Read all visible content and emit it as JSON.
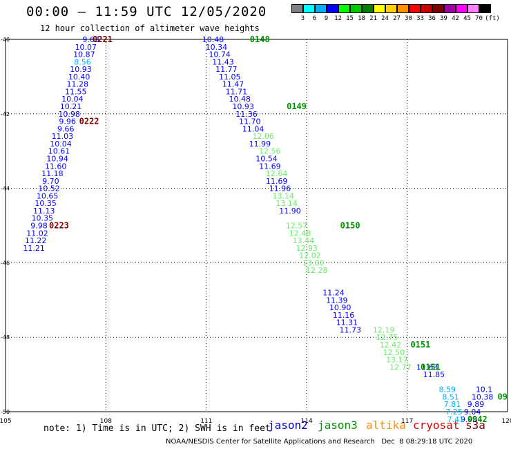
{
  "header": {
    "title": "00:00 — 11:59 UTC 12/05/2020",
    "subtitle": "12 hour collection of altimeter wave heights"
  },
  "colorbar": {
    "unit": "(ft)",
    "bins": [
      {
        "label": "3",
        "color": "#7f7f7f"
      },
      {
        "label": "6",
        "color": "#00ffff"
      },
      {
        "label": "9",
        "color": "#00b0ff"
      },
      {
        "label": "12",
        "color": "#0000ff"
      },
      {
        "label": "15",
        "color": "#00ff00"
      },
      {
        "label": "18",
        "color": "#00c800"
      },
      {
        "label": "21",
        "color": "#008000"
      },
      {
        "label": "24",
        "color": "#ffff00"
      },
      {
        "label": "27",
        "color": "#ffd000"
      },
      {
        "label": "30",
        "color": "#ff9000"
      },
      {
        "label": "33",
        "color": "#ff0000"
      },
      {
        "label": "36",
        "color": "#c80000"
      },
      {
        "label": "39",
        "color": "#800000"
      },
      {
        "label": "42",
        "color": "#a000a0"
      },
      {
        "label": "45",
        "color": "#ff00ff"
      },
      {
        "label": "70",
        "color": "#ff80ff"
      },
      {
        "label": "",
        "color": "#000000"
      }
    ]
  },
  "chart_data": {
    "type": "scatter",
    "xlim": [
      105,
      120
    ],
    "ylim": [
      -50,
      -40
    ],
    "xticks": [
      "105",
      "108",
      "111",
      "114",
      "117",
      "120"
    ],
    "yticks": [
      "-40",
      "-42",
      "-44",
      "-46",
      "-48",
      "-50"
    ],
    "grid": true,
    "series_colors": {
      "jason2": "#0000c8",
      "jason3": "#009000",
      "altika": "#ff8c00",
      "cryosat": "#e00000",
      "s3a": "#800000"
    },
    "legend": [
      "jason2",
      "jason3",
      "altika",
      "cryosat",
      "s3a"
    ],
    "series": [
      {
        "name": "s3a",
        "points": [
          {
            "x": 107.55,
            "y": -40.0,
            "v": "9.63"
          },
          {
            "x": 107.4,
            "y": -40.2,
            "v": "10.07"
          },
          {
            "x": 107.35,
            "y": -40.4,
            "v": "10.87"
          },
          {
            "x": 107.3,
            "y": -40.6,
            "v": "8.56"
          },
          {
            "x": 107.25,
            "y": -40.8,
            "v": "10.93"
          },
          {
            "x": 107.2,
            "y": -41.0,
            "v": "10.40"
          },
          {
            "x": 107.15,
            "y": -41.2,
            "v": "11.28"
          },
          {
            "x": 107.1,
            "y": -41.4,
            "v": "11.55"
          },
          {
            "x": 107.0,
            "y": -41.6,
            "v": "10.04"
          },
          {
            "x": 106.95,
            "y": -41.8,
            "v": "10.21"
          },
          {
            "x": 106.9,
            "y": -42.0,
            "v": "10.98"
          },
          {
            "x": 106.85,
            "y": -42.2,
            "v": "9.96"
          },
          {
            "x": 106.8,
            "y": -42.4,
            "v": "9.66"
          },
          {
            "x": 106.7,
            "y": -42.6,
            "v": "11.03"
          },
          {
            "x": 106.65,
            "y": -42.8,
            "v": "10.04"
          },
          {
            "x": 106.6,
            "y": -43.0,
            "v": "10.61"
          },
          {
            "x": 106.55,
            "y": -43.2,
            "v": "10.94"
          },
          {
            "x": 106.5,
            "y": -43.4,
            "v": "11.60"
          },
          {
            "x": 106.4,
            "y": -43.6,
            "v": "11.18"
          },
          {
            "x": 106.35,
            "y": -43.8,
            "v": "9.70"
          },
          {
            "x": 106.3,
            "y": -44.0,
            "v": "10.52"
          },
          {
            "x": 106.25,
            "y": -44.2,
            "v": "10.65"
          },
          {
            "x": 106.2,
            "y": -44.4,
            "v": "10.35"
          },
          {
            "x": 106.15,
            "y": -44.6,
            "v": "11.13"
          },
          {
            "x": 106.1,
            "y": -44.8,
            "v": "10.35"
          },
          {
            "x": 106.0,
            "y": -45.0,
            "v": "9.98"
          },
          {
            "x": 105.95,
            "y": -45.2,
            "v": "11.02"
          },
          {
            "x": 105.9,
            "y": -45.4,
            "v": "11.22"
          },
          {
            "x": 105.85,
            "y": -45.6,
            "v": "11.21"
          }
        ]
      },
      {
        "name": "jason2",
        "points": [
          {
            "x": 111.2,
            "y": -40.0,
            "v": "10.48"
          },
          {
            "x": 111.3,
            "y": -40.2,
            "v": "10.34"
          },
          {
            "x": 111.4,
            "y": -40.4,
            "v": "10.74"
          },
          {
            "x": 111.5,
            "y": -40.6,
            "v": "11.43"
          },
          {
            "x": 111.6,
            "y": -40.8,
            "v": "11.77"
          },
          {
            "x": 111.7,
            "y": -41.0,
            "v": "11.05"
          },
          {
            "x": 111.8,
            "y": -41.2,
            "v": "11.47"
          },
          {
            "x": 111.9,
            "y": -41.4,
            "v": "11.71"
          },
          {
            "x": 112.0,
            "y": -41.6,
            "v": "10.48"
          },
          {
            "x": 112.1,
            "y": -41.8,
            "v": "10.93"
          },
          {
            "x": 112.2,
            "y": -42.0,
            "v": "11.36"
          },
          {
            "x": 112.3,
            "y": -42.2,
            "v": "11.70"
          },
          {
            "x": 112.4,
            "y": -42.4,
            "v": "11.04"
          },
          {
            "x": 112.6,
            "y": -42.8,
            "v": "11.99"
          },
          {
            "x": 112.8,
            "y": -43.2,
            "v": "10.54"
          },
          {
            "x": 112.9,
            "y": -43.4,
            "v": "11.69"
          },
          {
            "x": 113.1,
            "y": -43.8,
            "v": "11.69"
          },
          {
            "x": 113.2,
            "y": -44.0,
            "v": "11.96"
          },
          {
            "x": 113.5,
            "y": -44.6,
            "v": "11.90"
          },
          {
            "x": 114.8,
            "y": -46.8,
            "v": "11.24"
          },
          {
            "x": 114.9,
            "y": -47.0,
            "v": "11.39"
          },
          {
            "x": 115.0,
            "y": -47.2,
            "v": "10.90"
          },
          {
            "x": 115.1,
            "y": -47.4,
            "v": "11.16"
          },
          {
            "x": 115.2,
            "y": -47.6,
            "v": "11.31"
          },
          {
            "x": 115.3,
            "y": -47.8,
            "v": "11.73"
          },
          {
            "x": 117.6,
            "y": -48.8,
            "v": "11.63"
          },
          {
            "x": 117.8,
            "y": -49.0,
            "v": "11.85"
          },
          {
            "x": 119.3,
            "y": -49.4,
            "v": "10.1"
          },
          {
            "x": 119.25,
            "y": -49.6,
            "v": "10.38"
          },
          {
            "x": 119.05,
            "y": -49.8,
            "v": "9.89"
          },
          {
            "x": 118.95,
            "y": -50.0,
            "v": "9.04"
          },
          {
            "x": 118.85,
            "y": -50.2,
            "v": "9.98"
          }
        ]
      },
      {
        "name": "jason3",
        "points": [
          {
            "x": 112.7,
            "y": -42.6,
            "v": "12.06"
          },
          {
            "x": 112.9,
            "y": -43.0,
            "v": "12.56"
          },
          {
            "x": 113.1,
            "y": -43.6,
            "v": "12.64"
          },
          {
            "x": 113.3,
            "y": -44.2,
            "v": "13.14"
          },
          {
            "x": 113.4,
            "y": -44.4,
            "v": "13.14"
          },
          {
            "x": 113.7,
            "y": -45.0,
            "v": "12.57"
          },
          {
            "x": 113.8,
            "y": -45.2,
            "v": "12.48"
          },
          {
            "x": 113.9,
            "y": -45.4,
            "v": "13.44"
          },
          {
            "x": 114.0,
            "y": -45.6,
            "v": "12.93"
          },
          {
            "x": 114.1,
            "y": -45.8,
            "v": "12.02"
          },
          {
            "x": 114.2,
            "y": -46.0,
            "v": "13.00"
          },
          {
            "x": 114.3,
            "y": -46.2,
            "v": "12.28"
          },
          {
            "x": 116.3,
            "y": -47.8,
            "v": "12.19"
          },
          {
            "x": 116.4,
            "y": -48.0,
            "v": "12.75"
          },
          {
            "x": 116.5,
            "y": -48.2,
            "v": "12.42"
          },
          {
            "x": 116.6,
            "y": -48.4,
            "v": "12.50"
          },
          {
            "x": 116.7,
            "y": -48.6,
            "v": "13.17"
          },
          {
            "x": 116.8,
            "y": -48.8,
            "v": "12.77"
          }
        ]
      },
      {
        "name": "altika",
        "points": [
          {
            "x": 118.2,
            "y": -49.4,
            "v": "8.59"
          },
          {
            "x": 118.3,
            "y": -49.6,
            "v": "8.51"
          },
          {
            "x": 118.35,
            "y": -49.8,
            "v": "7.81"
          },
          {
            "x": 118.4,
            "y": -50.0,
            "v": "7.25"
          },
          {
            "x": 118.45,
            "y": -50.2,
            "v": "7.41"
          }
        ]
      }
    ],
    "time_labels": [
      {
        "x": 107.6,
        "y": -40.0,
        "t": "0221",
        "sat": "s3a"
      },
      {
        "x": 107.2,
        "y": -42.2,
        "t": "0222",
        "sat": "s3a"
      },
      {
        "x": 106.3,
        "y": -45.0,
        "t": "0223",
        "sat": "s3a"
      },
      {
        "x": 112.3,
        "y": -40.0,
        "t": "0148",
        "sat": "jason3"
      },
      {
        "x": 113.4,
        "y": -41.8,
        "t": "0149",
        "sat": "jason3"
      },
      {
        "x": 115.0,
        "y": -45.0,
        "t": "0150",
        "sat": "jason3"
      },
      {
        "x": 117.1,
        "y": -48.2,
        "t": "0151",
        "sat": "jason3"
      },
      {
        "x": 117.4,
        "y": -48.8,
        "t": "0151",
        "sat": "jason3"
      },
      {
        "x": 118.8,
        "y": -50.2,
        "t": "0942",
        "sat": "jason3"
      },
      {
        "x": 119.7,
        "y": -49.6,
        "t": "09",
        "sat": "jason3"
      }
    ]
  },
  "note": "note: 1) Time is in UTC; 2) SWH is in feet",
  "legend_labels": {
    "jason2": "jason2",
    "jason3": "jason3",
    "altika": "altika",
    "cryosat": "cryosat",
    "s3a": "s3a"
  },
  "footer": "NOAA/NESDIS Center for Satellite Applications and Research   Dec  8 08:29:18 UTC 2020"
}
